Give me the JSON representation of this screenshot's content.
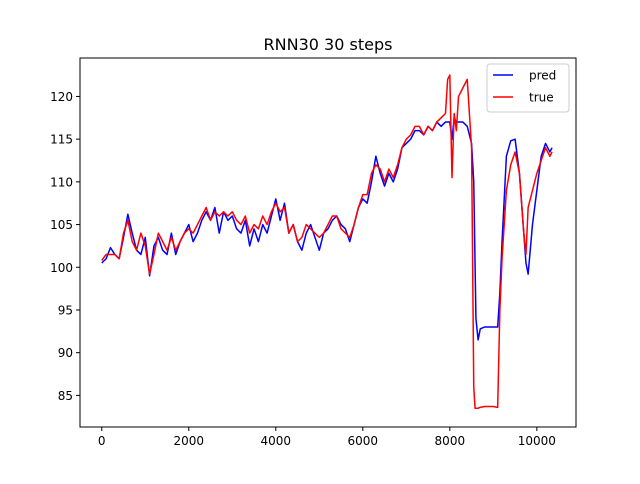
{
  "chart_data": {
    "type": "line",
    "title": "RNN30 30 steps",
    "xlabel": "",
    "ylabel": "",
    "xlim": [
      -500,
      10900
    ],
    "ylim": [
      81.3,
      124.5
    ],
    "xticks": [
      0,
      2000,
      4000,
      6000,
      8000,
      10000
    ],
    "yticks": [
      85,
      90,
      95,
      100,
      105,
      110,
      115,
      120
    ],
    "grid": false,
    "legend": "top-right",
    "series": [
      {
        "name": "pred",
        "color": "#0000ff",
        "x": [
          0,
          100,
          200,
          300,
          400,
          500,
          600,
          700,
          800,
          900,
          1000,
          1100,
          1200,
          1300,
          1400,
          1500,
          1600,
          1700,
          1800,
          1900,
          2000,
          2100,
          2200,
          2300,
          2400,
          2500,
          2600,
          2700,
          2800,
          2900,
          3000,
          3100,
          3200,
          3300,
          3400,
          3500,
          3600,
          3700,
          3800,
          3900,
          4000,
          4100,
          4200,
          4300,
          4400,
          4500,
          4600,
          4700,
          4800,
          4900,
          5000,
          5100,
          5200,
          5300,
          5400,
          5500,
          5600,
          5700,
          5800,
          5900,
          6000,
          6100,
          6200,
          6300,
          6400,
          6500,
          6600,
          6700,
          6800,
          6900,
          7000,
          7100,
          7200,
          7300,
          7400,
          7500,
          7600,
          7700,
          7800,
          7900,
          8000,
          8050,
          8100,
          8150,
          8200,
          8300,
          8400,
          8500,
          8550,
          8600,
          8650,
          8700,
          8800,
          8900,
          9000,
          9100,
          9150,
          9200,
          9300,
          9400,
          9500,
          9600,
          9700,
          9750,
          9800,
          9900,
          10000,
          10100,
          10200,
          10300,
          10350
        ],
        "values": [
          100.5,
          101,
          102.3,
          101.5,
          101,
          103.5,
          106.2,
          104,
          102,
          101.5,
          103.5,
          99,
          102.5,
          103.5,
          102,
          101.5,
          104,
          101.5,
          103,
          104,
          105,
          103,
          104,
          105.5,
          106.5,
          105.5,
          107,
          104,
          106.5,
          105.5,
          106,
          104.5,
          104,
          105.5,
          102.5,
          104.5,
          103,
          105,
          104,
          106,
          108,
          105.5,
          107.5,
          104,
          105,
          103,
          102,
          104,
          105,
          103.5,
          102,
          104,
          104.5,
          105.5,
          106,
          105,
          104.5,
          103,
          105,
          107,
          108,
          107.5,
          110,
          113,
          111,
          109.5,
          111,
          110,
          111.5,
          114,
          114.5,
          115,
          116,
          116,
          115.5,
          116.5,
          116,
          117,
          116.5,
          117,
          117,
          115,
          117.5,
          117,
          117,
          117,
          116.5,
          114.5,
          110,
          94,
          91.5,
          92.8,
          93,
          93,
          93,
          93,
          97,
          103,
          113,
          114.8,
          115,
          111,
          104,
          100.5,
          99.2,
          105,
          109,
          113,
          114.5,
          113.5,
          114
        ],
        "stroke_width": 1.5
      },
      {
        "name": "true",
        "color": "#ff0000",
        "x": [
          0,
          100,
          200,
          300,
          400,
          500,
          600,
          700,
          800,
          900,
          1000,
          1100,
          1200,
          1300,
          1400,
          1500,
          1600,
          1700,
          1800,
          1900,
          2000,
          2100,
          2200,
          2300,
          2400,
          2500,
          2600,
          2700,
          2800,
          2900,
          3000,
          3100,
          3200,
          3300,
          3400,
          3500,
          3600,
          3700,
          3800,
          3900,
          4000,
          4100,
          4200,
          4300,
          4400,
          4500,
          4600,
          4700,
          4800,
          4900,
          5000,
          5100,
          5200,
          5300,
          5400,
          5500,
          5600,
          5700,
          5800,
          5900,
          6000,
          6100,
          6200,
          6300,
          6400,
          6500,
          6600,
          6700,
          6800,
          6900,
          7000,
          7100,
          7200,
          7300,
          7400,
          7500,
          7600,
          7700,
          7800,
          7900,
          7950,
          8000,
          8050,
          8100,
          8150,
          8200,
          8300,
          8400,
          8500,
          8550,
          8580,
          8600,
          8650,
          8700,
          8800,
          8900,
          9000,
          9100,
          9150,
          9200,
          9300,
          9400,
          9500,
          9600,
          9700,
          9750,
          9800,
          9900,
          10000,
          10100,
          10200,
          10300,
          10350
        ],
        "values": [
          100.8,
          101.5,
          101.5,
          101.5,
          101,
          104,
          105.5,
          103,
          102,
          104,
          102.5,
          99.2,
          101.5,
          104,
          103,
          102,
          103.5,
          102,
          103,
          104,
          104.5,
          104,
          105,
          106,
          107,
          105.5,
          106.5,
          106,
          106.5,
          106,
          106.5,
          105.5,
          105,
          106,
          104,
          105,
          104.5,
          106,
          105,
          106.5,
          107.5,
          106.5,
          107,
          104,
          105,
          103,
          103.5,
          105,
          104.5,
          104,
          103.5,
          104,
          105,
          106,
          106,
          104.5,
          104,
          103.5,
          105,
          107,
          108.5,
          108.5,
          111,
          112,
          111.5,
          110,
          111.5,
          110.5,
          112,
          114,
          115,
          115.5,
          116.5,
          116.5,
          115.5,
          116.5,
          116,
          117,
          117.5,
          118,
          122,
          122.5,
          110.5,
          118,
          116,
          120,
          121,
          122,
          114,
          86,
          83.5,
          83.5,
          83.5,
          83.6,
          83.7,
          83.7,
          83.7,
          83.6,
          95,
          101,
          109,
          112,
          113.5,
          111,
          104,
          101.5,
          107,
          109,
          111,
          112.5,
          114,
          113,
          113.5
        ],
        "stroke_width": 1.5
      }
    ]
  }
}
